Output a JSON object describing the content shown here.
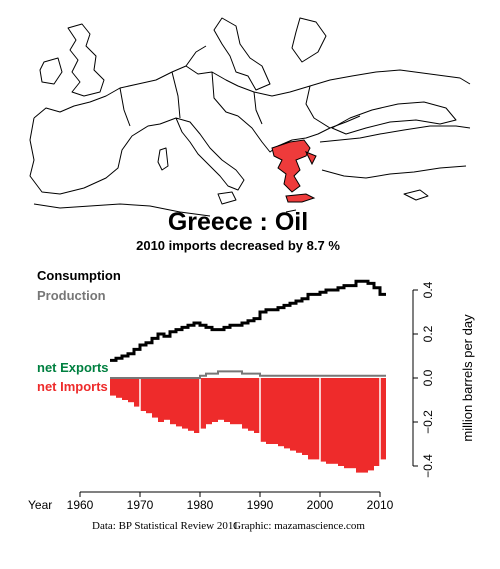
{
  "title": "Greece :  Oil",
  "subtitle": "2010 imports decreased by 8.7 %",
  "legend": {
    "consumption": "Consumption",
    "production": "Production",
    "net_exports": "net Exports",
    "net_imports": "net Imports"
  },
  "colors": {
    "consumption": "#000000",
    "production": "#777777",
    "net_exports": "#008040",
    "net_imports": "#ee2b2b",
    "country_fill": "#ee3b3b"
  },
  "footer": {
    "source": "Data: BP Statistical Review 2011",
    "graphic": "Graphic: mazamascience.com"
  },
  "map": {
    "country_icon": "greece-highlight-shape",
    "description_icon": "europe-outline-map"
  },
  "chart_data": {
    "type": "bar",
    "x_label_prefix": "Year",
    "ylabel": "million barrels per day",
    "xlim": [
      1960,
      2012
    ],
    "ylim": [
      -0.5,
      0.5
    ],
    "x_ticks": [
      1960,
      1970,
      1980,
      1990,
      2000,
      2010
    ],
    "y_ticks": [
      -0.4,
      -0.2,
      0.0,
      0.2,
      0.4
    ],
    "y_tick_labels": [
      "−0.4",
      "−0.2",
      "0.0",
      "0.2",
      "0.4"
    ],
    "years": [
      1965,
      1966,
      1967,
      1968,
      1969,
      1970,
      1971,
      1972,
      1973,
      1974,
      1975,
      1976,
      1977,
      1978,
      1979,
      1980,
      1981,
      1982,
      1983,
      1984,
      1985,
      1986,
      1987,
      1988,
      1989,
      1990,
      1991,
      1992,
      1993,
      1994,
      1995,
      1996,
      1997,
      1998,
      1999,
      2000,
      2001,
      2002,
      2003,
      2004,
      2005,
      2006,
      2007,
      2008,
      2009,
      2010
    ],
    "series": [
      {
        "name": "Consumption",
        "values": [
          0.08,
          0.09,
          0.1,
          0.11,
          0.13,
          0.15,
          0.16,
          0.18,
          0.2,
          0.19,
          0.21,
          0.22,
          0.23,
          0.24,
          0.25,
          0.24,
          0.23,
          0.22,
          0.22,
          0.23,
          0.24,
          0.24,
          0.25,
          0.26,
          0.27,
          0.3,
          0.31,
          0.31,
          0.32,
          0.33,
          0.34,
          0.35,
          0.36,
          0.38,
          0.38,
          0.39,
          0.4,
          0.4,
          0.41,
          0.42,
          0.42,
          0.44,
          0.44,
          0.43,
          0.41,
          0.38
        ]
      },
      {
        "name": "Production",
        "values": [
          0,
          0,
          0,
          0,
          0,
          0,
          0,
          0,
          0,
          0,
          0,
          0,
          0,
          0,
          0,
          0.01,
          0.02,
          0.02,
          0.03,
          0.03,
          0.03,
          0.03,
          0.02,
          0.02,
          0.02,
          0.01,
          0.01,
          0.01,
          0.01,
          0.01,
          0.01,
          0.01,
          0.01,
          0.01,
          0.01,
          0.01,
          0.01,
          0.01,
          0.01,
          0.01,
          0.01,
          0.01,
          0.01,
          0.01,
          0.01,
          0.01
        ]
      },
      {
        "name": "net Imports",
        "values": [
          -0.08,
          -0.09,
          -0.1,
          -0.11,
          -0.13,
          -0.15,
          -0.16,
          -0.18,
          -0.2,
          -0.19,
          -0.21,
          -0.22,
          -0.23,
          -0.24,
          -0.25,
          -0.23,
          -0.21,
          -0.2,
          -0.19,
          -0.2,
          -0.21,
          -0.21,
          -0.23,
          -0.24,
          -0.25,
          -0.29,
          -0.3,
          -0.3,
          -0.31,
          -0.32,
          -0.33,
          -0.34,
          -0.35,
          -0.37,
          -0.37,
          -0.38,
          -0.39,
          -0.39,
          -0.4,
          -0.41,
          -0.41,
          -0.43,
          -0.43,
          -0.42,
          -0.4,
          -0.37
        ]
      }
    ]
  }
}
